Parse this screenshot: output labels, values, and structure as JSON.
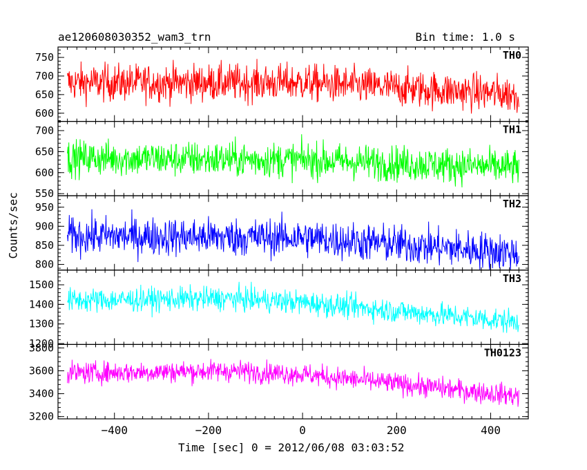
{
  "header": {
    "title": "ae120608030352_wam3_trn",
    "bin_time": "Bin time: 1.0 s"
  },
  "chart_data": {
    "type": "line",
    "xlabel": "Time [sec] 0 = 2012/06/08 03:03:52",
    "ylabel": "Counts/sec",
    "xlim": [
      -520,
      480
    ],
    "x_ticks": [
      -400,
      -200,
      0,
      200,
      400
    ],
    "x_tick_labels": [
      "−400",
      "−200",
      "0",
      "200",
      "400"
    ],
    "x_range": [
      -500,
      460
    ],
    "panels": [
      {
        "name": "TH0",
        "color": "#ff0000",
        "ylim": [
          578,
          778
        ],
        "y_ticks": [
          600,
          650,
          700,
          750
        ],
        "trend": [
          [
            -500,
            682
          ],
          [
            0,
            682
          ],
          [
            460,
            650
          ]
        ],
        "noise": 45
      },
      {
        "name": "TH1",
        "color": "#00ff00",
        "ylim": [
          545,
          722
        ],
        "y_ticks": [
          550,
          600,
          650,
          700
        ],
        "trend": [
          [
            -500,
            635
          ],
          [
            0,
            630
          ],
          [
            460,
            612
          ]
        ],
        "noise": 38
      },
      {
        "name": "TH2",
        "color": "#0000ff",
        "ylim": [
          785,
          980
        ],
        "y_ticks": [
          800,
          850,
          900,
          950
        ],
        "trend": [
          [
            -500,
            875
          ],
          [
            0,
            870
          ],
          [
            460,
            830
          ]
        ],
        "noise": 45
      },
      {
        "name": "TH3",
        "color": "#00ffff",
        "ylim": [
          1195,
          1575
        ],
        "y_ticks": [
          1200,
          1300,
          1400,
          1500
        ],
        "trend": [
          [
            -500,
            1420
          ],
          [
            -150,
            1430
          ],
          [
            0,
            1410
          ],
          [
            460,
            1310
          ]
        ],
        "noise": 55
      },
      {
        "name": "TH0123",
        "color": "#ff00ff",
        "ylim": [
          3180,
          3830
        ],
        "y_ticks": [
          3200,
          3400,
          3600,
          3800
        ],
        "trend": [
          [
            -500,
            3580
          ],
          [
            -150,
            3600
          ],
          [
            0,
            3570
          ],
          [
            460,
            3380
          ]
        ],
        "noise": 85
      }
    ]
  }
}
